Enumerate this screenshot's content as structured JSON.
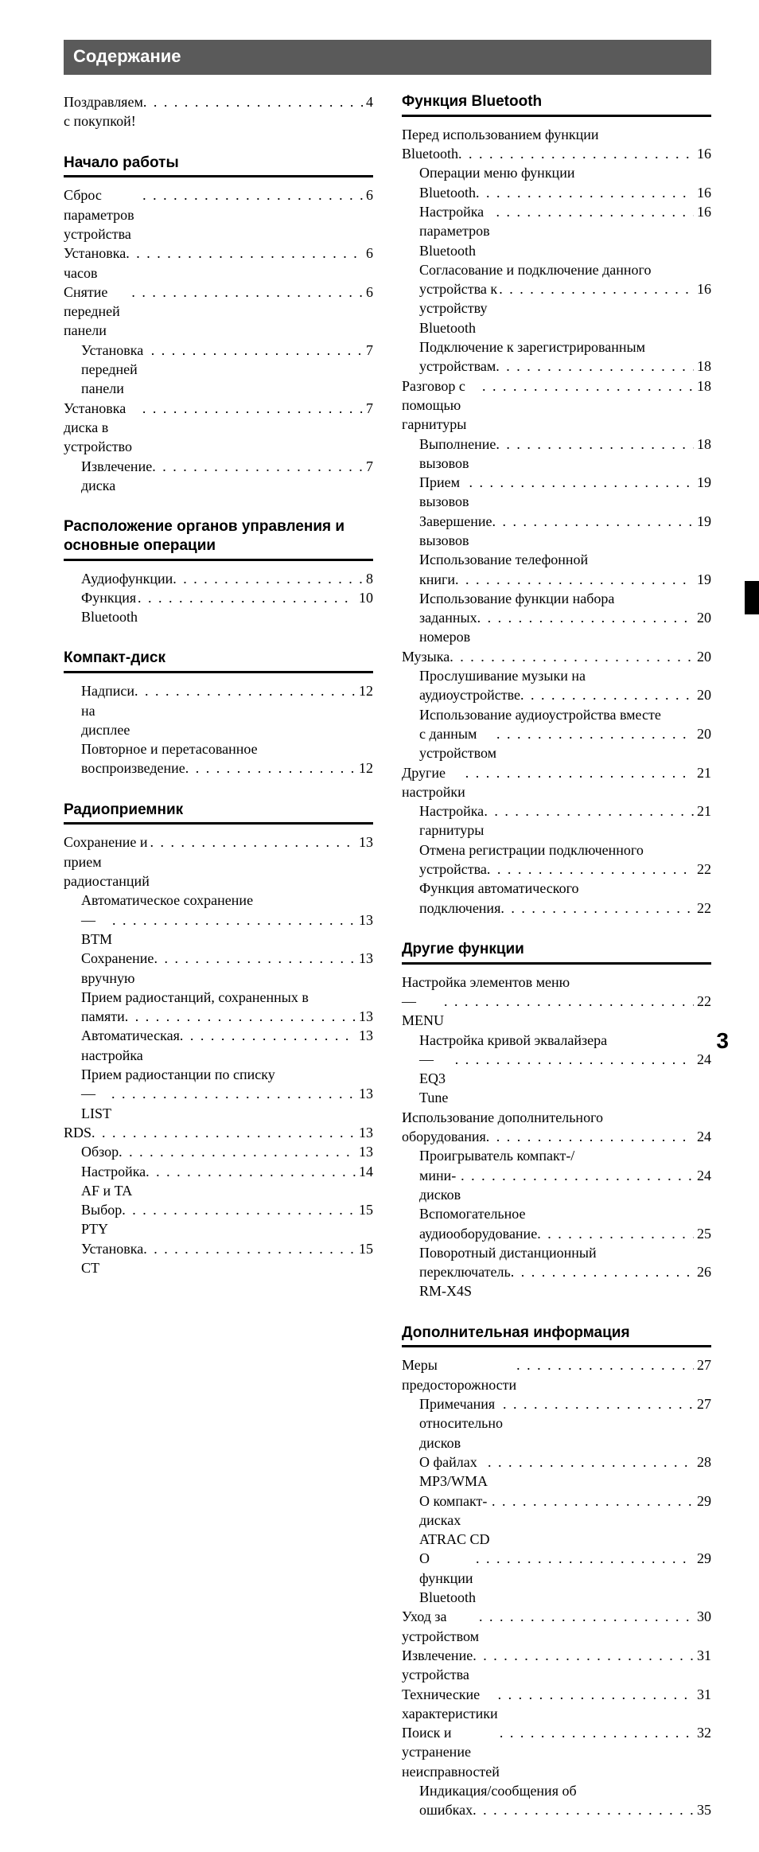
{
  "title": "Содержание",
  "page_number": "3",
  "colors": {
    "title_bg": "#5a5a5a",
    "title_fg": "#ffffff",
    "text": "#000000",
    "rule": "#000000",
    "page_bg": "#ffffff"
  },
  "fonts": {
    "heading_family": "Arial",
    "body_family": "Times New Roman",
    "title_size_pt": 22,
    "heading_size_pt": 19,
    "body_size_pt": 18
  },
  "left": {
    "intro": {
      "label": "Поздравляем с покупкой!",
      "page": "4"
    },
    "sections": [
      {
        "heading": "Начало работы",
        "items": [
          {
            "label": "Сброс параметров устройства",
            "page": "6",
            "indent": 0
          },
          {
            "label": "Установка часов",
            "page": "6",
            "indent": 0
          },
          {
            "label": "Снятие передней панели",
            "page": "6",
            "indent": 0
          },
          {
            "label": "Установка передней панели",
            "page": "7",
            "indent": 1
          },
          {
            "label": "Установка диска в устройство",
            "page": "7",
            "indent": 0
          },
          {
            "label": "Извлечение диска",
            "page": "7",
            "indent": 1
          }
        ]
      },
      {
        "heading": "Расположение органов управления и основные операции",
        "items": [
          {
            "label": "Аудиофункции",
            "page": "8",
            "indent": 1
          },
          {
            "label": "Функция Bluetooth",
            "page": "10",
            "indent": 1
          }
        ]
      },
      {
        "heading": "Компакт-диск",
        "items": [
          {
            "label": "Надписи на дисплее",
            "page": "12",
            "indent": 1
          },
          {
            "label": "Повторное и перетасованное",
            "cont": "воспроизведение",
            "page": "12",
            "indent": 1
          }
        ]
      },
      {
        "heading": "Радиоприемник",
        "items": [
          {
            "label": "Сохранение и прием радиостанций",
            "page": "13",
            "indent": 0
          },
          {
            "label": "Автоматическое сохранение",
            "cont": "— BTM",
            "page": "13",
            "indent": 1
          },
          {
            "label": "Сохранение вручную",
            "page": "13",
            "indent": 1
          },
          {
            "label": "Прием радиостанций, сохраненных в",
            "cont": "памяти",
            "page": "13",
            "indent": 1
          },
          {
            "label": "Автоматическая настройка",
            "page": "13",
            "indent": 1
          },
          {
            "label": "Прием радиостанции по списку",
            "cont": "— LIST",
            "page": "13",
            "indent": 1
          },
          {
            "label": "RDS",
            "page": "13",
            "indent": 0
          },
          {
            "label": "Обзор",
            "page": "13",
            "indent": 1
          },
          {
            "label": "Настройка AF и TA",
            "page": "14",
            "indent": 1
          },
          {
            "label": "Выбор PTY",
            "page": "15",
            "indent": 1
          },
          {
            "label": "Установка CT",
            "page": "15",
            "indent": 1
          }
        ]
      }
    ]
  },
  "right": {
    "sections": [
      {
        "heading": "Функция Bluetooth",
        "items": [
          {
            "label": "Перед использованием функции",
            "cont": "Bluetooth",
            "page": "16",
            "indent": 0
          },
          {
            "label": "Операции меню функции",
            "cont": "Bluetooth",
            "page": "16",
            "indent": 1
          },
          {
            "label": "Настройка параметров Bluetooth",
            "page": "16",
            "indent": 1
          },
          {
            "label": "Согласование и подключение данного",
            "cont": "устройства к устройству Bluetooth",
            "page": "16",
            "indent": 1
          },
          {
            "label": "Подключение к зарегистрированным",
            "cont": "устройствам",
            "page": "18",
            "indent": 1
          },
          {
            "label": "Разговор с помощью гарнитуры",
            "page": "18",
            "indent": 0
          },
          {
            "label": "Выполнение вызовов",
            "page": "18",
            "indent": 1
          },
          {
            "label": "Прием вызовов",
            "page": "19",
            "indent": 1
          },
          {
            "label": "Завершение вызовов",
            "page": "19",
            "indent": 1
          },
          {
            "label": "Использование телефонной",
            "cont": "книги",
            "page": "19",
            "indent": 1
          },
          {
            "label": "Использование функции набора",
            "cont": "заданных номеров",
            "page": "20",
            "indent": 1
          },
          {
            "label": "Музыка",
            "page": "20",
            "indent": 0
          },
          {
            "label": "Прослушивание музыки на",
            "cont": "аудиоустройстве",
            "page": "20",
            "indent": 1
          },
          {
            "label": "Использование аудиоустройства вместе",
            "cont": "с данным устройством",
            "page": "20",
            "indent": 1
          },
          {
            "label": "Другие настройки",
            "page": "21",
            "indent": 0
          },
          {
            "label": "Настройка гарнитуры",
            "page": "21",
            "indent": 1
          },
          {
            "label": "Отмена регистрации подключенного",
            "cont": "устройства",
            "page": "22",
            "indent": 1
          },
          {
            "label": "Функция автоматического",
            "cont": "подключения",
            "page": "22",
            "indent": 1
          }
        ]
      },
      {
        "heading": "Другие функции",
        "items": [
          {
            "label": "Настройка элементов меню",
            "cont": "— MENU",
            "page": "22",
            "indent": 0
          },
          {
            "label": "Настройка кривой эквалайзера",
            "cont": "— EQ3 Tune",
            "page": "24",
            "indent": 1
          },
          {
            "label": "Использование дополнительного",
            "cont": "оборудования",
            "page": "24",
            "indent": 0
          },
          {
            "label": "Проигрыватель компакт-/",
            "cont": "мини-дисков",
            "page": "24",
            "indent": 1
          },
          {
            "label": "Вспомогательное",
            "cont": "аудиооборудование",
            "page": "25",
            "indent": 1
          },
          {
            "label": "Поворотный дистанционный",
            "cont": "переключатель RM-X4S",
            "page": "26",
            "indent": 1
          }
        ]
      },
      {
        "heading": "Дополнительная информация",
        "items": [
          {
            "label": "Меры предосторожности",
            "page": "27",
            "indent": 0
          },
          {
            "label": "Примечания относительно дисков",
            "page": "27",
            "indent": 1
          },
          {
            "label": "О файлах MP3/WMA",
            "page": "28",
            "indent": 1
          },
          {
            "label": "О компакт-дисках ATRAC CD",
            "page": "29",
            "indent": 1
          },
          {
            "label": "О функции Bluetooth",
            "page": "29",
            "indent": 1
          },
          {
            "label": "Уход за устройством",
            "page": "30",
            "indent": 0
          },
          {
            "label": "Извлечение устройства",
            "page": "31",
            "indent": 0
          },
          {
            "label": "Технические характеристики",
            "page": "31",
            "indent": 0
          },
          {
            "label": "Поиск и устранение неисправностей",
            "page": "32",
            "indent": 0
          },
          {
            "label": "Индикация/сообщения об",
            "cont": "ошибках",
            "page": "35",
            "indent": 1
          }
        ]
      }
    ]
  }
}
